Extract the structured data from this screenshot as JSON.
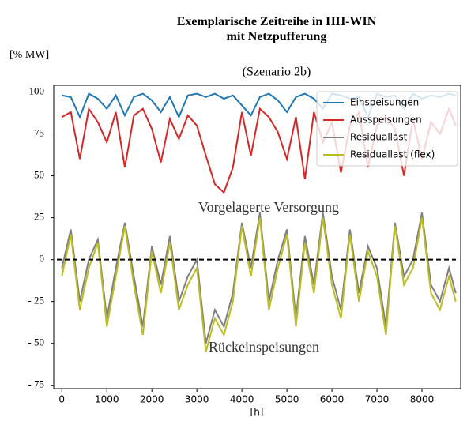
{
  "chart_data": {
    "type": "line",
    "title": "Exemplarische Zeitreihe in HH-WIN mit Netzpufferung",
    "subtitle": "(Szenario 2b)",
    "y_label": "[% MW]",
    "x_label": "[h]",
    "annotations": [
      "Vorgelagerte Versorgung",
      "Rückeinspeisungen"
    ],
    "legend": "upper right",
    "hline": 0,
    "x": [
      0,
      200,
      400,
      600,
      800,
      1000,
      1200,
      1400,
      1600,
      1800,
      2000,
      2200,
      2400,
      2600,
      2800,
      3000,
      3200,
      3400,
      3600,
      3800,
      4000,
      4200,
      4400,
      4600,
      4800,
      5000,
      5200,
      5400,
      5600,
      5800,
      6000,
      6200,
      6400,
      6600,
      6800,
      7000,
      7200,
      7400,
      7600,
      7800,
      8000,
      8200,
      8400,
      8600,
      8750
    ],
    "series": [
      {
        "name": "Einspeisungen",
        "color": "#1f77b4",
        "values": [
          98,
          97,
          85,
          99,
          96,
          90,
          98,
          86,
          97,
          99,
          95,
          88,
          97,
          85,
          98,
          99,
          97,
          99,
          96,
          98,
          92,
          86,
          97,
          99,
          95,
          88,
          97,
          99,
          96,
          90,
          99,
          98,
          96,
          97,
          85,
          99,
          97,
          98,
          90,
          99,
          96,
          98,
          97,
          99,
          98
        ]
      },
      {
        "name": "Ausspeisungen",
        "color": "#d62728",
        "values": [
          85,
          88,
          60,
          90,
          82,
          70,
          88,
          55,
          86,
          90,
          78,
          58,
          84,
          72,
          86,
          80,
          62,
          45,
          40,
          55,
          88,
          62,
          90,
          85,
          76,
          60,
          85,
          48,
          88,
          70,
          82,
          52,
          80,
          88,
          55,
          80,
          85,
          78,
          50,
          84,
          60,
          82,
          75,
          90,
          80
        ]
      },
      {
        "name": "Residuallast",
        "color": "#7f7f7f",
        "values": [
          -5,
          18,
          -25,
          0,
          12,
          -35,
          -5,
          22,
          -10,
          -40,
          8,
          -15,
          14,
          -25,
          -10,
          0,
          -50,
          -30,
          -40,
          -20,
          22,
          -5,
          28,
          -25,
          0,
          18,
          -35,
          14,
          -15,
          28,
          -10,
          -30,
          18,
          -20,
          8,
          -5,
          -40,
          22,
          -10,
          0,
          28,
          -15,
          -25,
          -5,
          -20
        ]
      },
      {
        "name": "Residuallast (flex)",
        "color": "#bcbd22",
        "values": [
          -10,
          15,
          -30,
          -5,
          10,
          -40,
          -10,
          20,
          -15,
          -45,
          5,
          -20,
          10,
          -30,
          -15,
          -5,
          -55,
          -35,
          -45,
          -25,
          20,
          -10,
          25,
          -30,
          -5,
          15,
          -40,
          10,
          -20,
          25,
          -15,
          -35,
          15,
          -25,
          5,
          -10,
          -45,
          20,
          -15,
          -5,
          25,
          -20,
          -30,
          -10,
          -25
        ]
      }
    ],
    "xlim": [
      -180,
      8860
    ],
    "ylim": [
      -77,
      104
    ],
    "xticks": [
      0,
      1000,
      2000,
      3000,
      4000,
      5000,
      6000,
      7000,
      8000
    ],
    "yticks": [
      {
        "value": -75,
        "label": "- 75"
      },
      {
        "value": -50,
        "label": "- 50"
      },
      {
        "value": -25,
        "label": "- 25"
      },
      0,
      25,
      50,
      75,
      100
    ]
  }
}
